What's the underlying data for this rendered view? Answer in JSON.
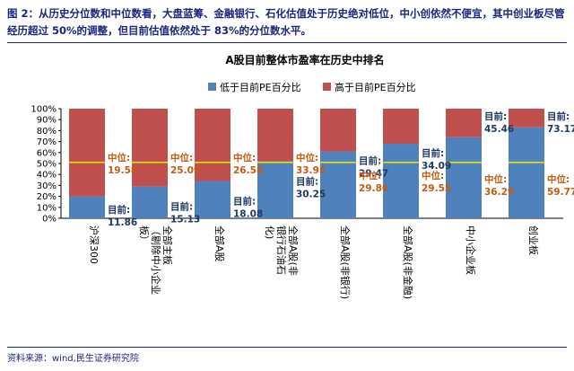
{
  "caption": "图 2：从历史分位数和中位数看，大盘蓝筹、金融银行、石化估值处于历史绝对低位，中小创依然不便宜，其中创业板尽管经历超过 50%的调整，但目前估值依然处于 83%的分位数水平。",
  "source": "资料来源：wind,民生证券研究院",
  "colors": {
    "low": "#4f81bd",
    "high": "#c0504d",
    "median_line": "#f2e600",
    "label_current": "#1f3864",
    "label_median": "#c55a11"
  },
  "chart_data": {
    "type": "bar",
    "stacked": true,
    "title": "A股目前整体市盈率在历史中排名",
    "categories": [
      "沪深300",
      "全部主板（剔除中小企业板）",
      "全部A股",
      "全部A股(非银行石油石化)",
      "全部A股(非银行)",
      "全部A股(非金融)",
      "中小企业板",
      "创业板"
    ],
    "category_lines": [
      [
        "沪深300"
      ],
      [
        "全部主板",
        "（剔除中小企业",
        "板）"
      ],
      [
        "全部A股"
      ],
      [
        "全部A股(非",
        "银行石油石",
        "化)"
      ],
      [
        "全部A股(非银行)"
      ],
      [
        "全部A股(非金融)"
      ],
      [
        "中小企业板"
      ],
      [
        "创业板"
      ]
    ],
    "series": [
      {
        "name": "低于目前PE百分比",
        "values": [
          20.0,
          29.0,
          34.0,
          52.0,
          61.0,
          68.0,
          74.0,
          83.0
        ]
      },
      {
        "name": "高于目前PE百分比",
        "values": [
          80.0,
          71.0,
          66.0,
          48.0,
          39.0,
          32.0,
          26.0,
          17.0
        ]
      }
    ],
    "median_level_pct": 51,
    "yticks": [
      "0%",
      "10%",
      "20%",
      "30%",
      "40%",
      "50%",
      "60%",
      "70%",
      "80%",
      "90%",
      "100%"
    ],
    "ylim": [
      0,
      100
    ],
    "legend_position": "top",
    "annotations": [
      {
        "median_label": "中位:",
        "median": "19.58",
        "current_label": "目前:",
        "current": "11.86"
      },
      {
        "median_label": "中位:",
        "median": "25.09",
        "current_label": "目前:",
        "current": "15.13"
      },
      {
        "median_label": "中位:",
        "median": "26.58",
        "current_label": "目前:",
        "current": "18.08"
      },
      {
        "median_label": "中位:",
        "median": "33.95",
        "current_label": "目前:",
        "current": "30.25"
      },
      {
        "median_label": "中位:",
        "median": "29.86",
        "current_label": "目前:",
        "current": "29.47"
      },
      {
        "median_label": "中位:",
        "median": "29.55",
        "current_label": "目前:",
        "current": "34.09"
      },
      {
        "median_label": "中位:",
        "median": "36.29",
        "current_label": "目前:",
        "current": "45.46"
      },
      {
        "median_label": "中位:",
        "median": "59.77",
        "current_label": "目前:",
        "current": "73.17"
      }
    ]
  }
}
